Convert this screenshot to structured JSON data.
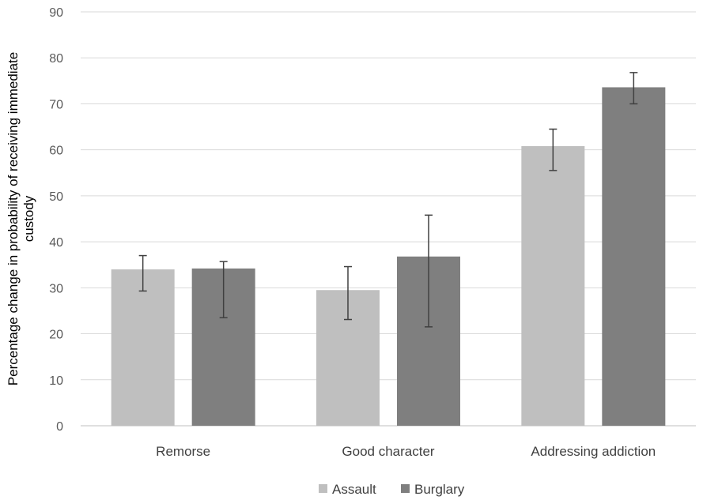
{
  "chart_data": {
    "type": "bar",
    "title": "",
    "xlabel": "",
    "ylabel": "Percentage change in probability of receiving immediate custody",
    "ylim": [
      0,
      90
    ],
    "yticks": [
      0,
      10,
      20,
      30,
      40,
      50,
      60,
      70,
      80,
      90
    ],
    "grid": true,
    "legend_position": "bottom",
    "categories": [
      "Remorse",
      "Good character",
      "Addressing addiction"
    ],
    "series": [
      {
        "name": "Assault",
        "color": "#bfbfbf",
        "values": [
          34,
          29.5,
          60.8
        ],
        "error_low": [
          29.3,
          23.1,
          55.5
        ],
        "error_high": [
          37,
          34.6,
          64.5
        ]
      },
      {
        "name": "Burglary",
        "color": "#7f7f7f",
        "values": [
          34.2,
          36.8,
          73.6
        ],
        "error_low": [
          23.5,
          21.5,
          70
        ],
        "error_high": [
          35.7,
          45.8,
          76.8
        ]
      }
    ]
  }
}
